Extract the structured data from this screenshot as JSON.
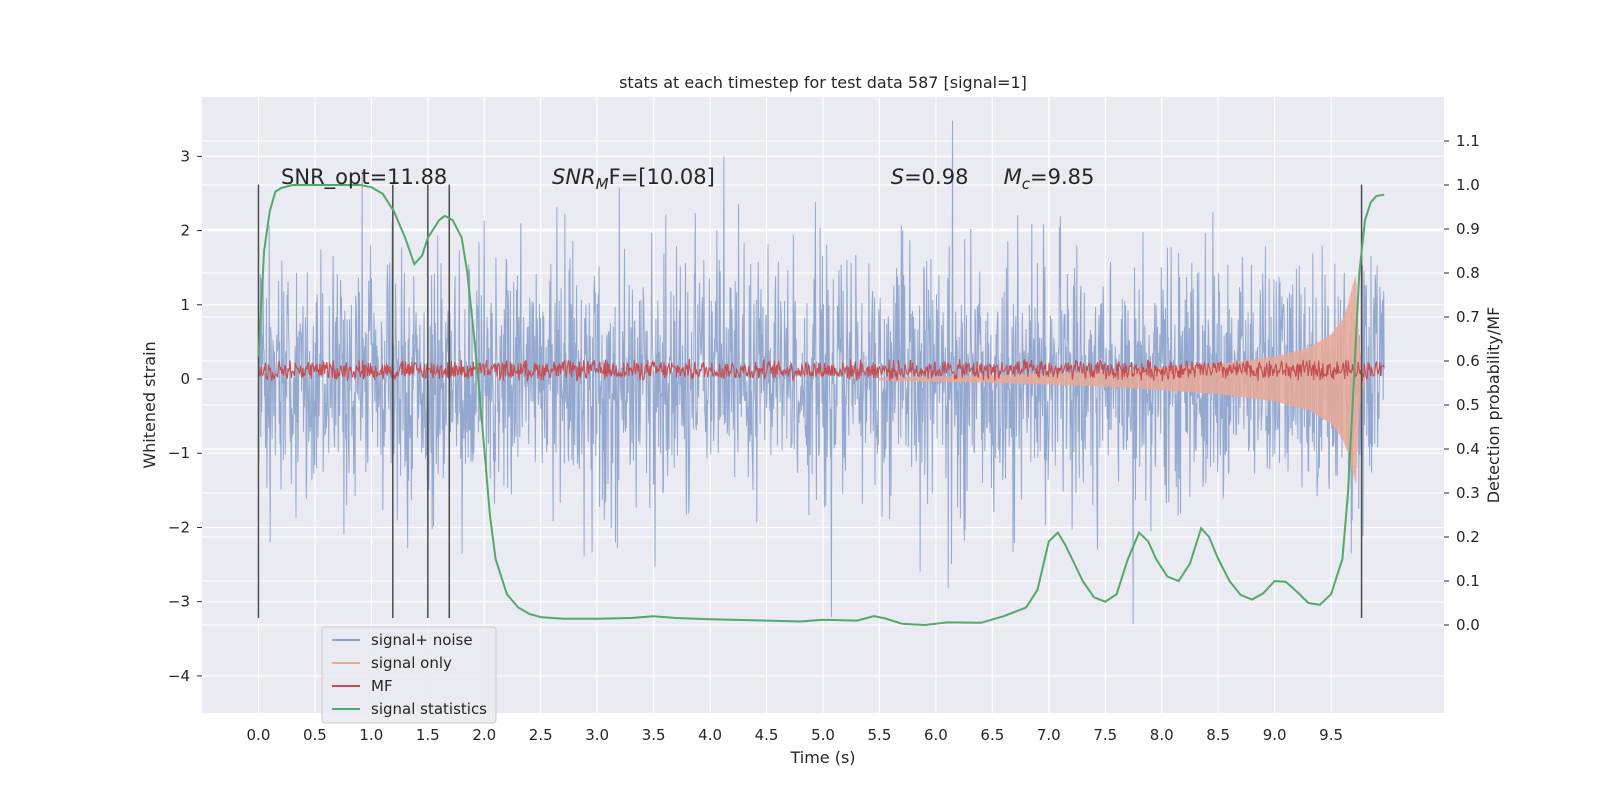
{
  "chart_data": {
    "type": "line",
    "title": "stats at each timestep for test data 587 [signal=1]",
    "xlabel": "Time (s)",
    "ylabel_left": "Whitened strain",
    "ylabel_right": "Detection probability/MF",
    "xlim": [
      -0.5,
      10.5
    ],
    "ylim_left": [
      -4.5,
      3.8
    ],
    "ylim_right": [
      -0.2,
      1.2
    ],
    "x_ticks": [
      0.0,
      0.5,
      1.0,
      1.5,
      2.0,
      2.5,
      3.0,
      3.5,
      4.0,
      4.5,
      5.0,
      5.5,
      6.0,
      6.5,
      7.0,
      7.5,
      8.0,
      8.5,
      9.0,
      9.5
    ],
    "x_tick_labels": [
      "0.0",
      "0.5",
      "1.0",
      "1.5",
      "2.0",
      "2.5",
      "3.0",
      "3.5",
      "4.0",
      "4.5",
      "5.0",
      "5.5",
      "6.0",
      "6.5",
      "7.0",
      "7.5",
      "8.0",
      "8.5",
      "9.0",
      "9.5"
    ],
    "y_ticks_left": [
      -4,
      -3,
      -2,
      -1,
      0,
      1,
      2,
      3
    ],
    "y_tick_labels_left": [
      "−4",
      "−3",
      "−2",
      "−1",
      "0",
      "1",
      "2",
      "3"
    ],
    "y_ticks_right": [
      0.0,
      0.1,
      0.2,
      0.3,
      0.4,
      0.5,
      0.6,
      0.7,
      0.8,
      0.9,
      1.0,
      1.1
    ],
    "y_tick_labels_right": [
      "0.0",
      "0.1",
      "0.2",
      "0.3",
      "0.4",
      "0.5",
      "0.6",
      "0.7",
      "0.8",
      "0.9",
      "1.0",
      "1.1"
    ],
    "grid": true,
    "legend_position": "lower-left",
    "legend": [
      {
        "label": "signal+ noise",
        "color": "#8fa4cc"
      },
      {
        "label": "signal only",
        "color": "#e8a996"
      },
      {
        "label": "MF",
        "color": "#c44e52"
      },
      {
        "label": "signal statistics",
        "color": "#55a868"
      }
    ],
    "annotations": [
      {
        "id": "snr-opt",
        "x": 0.2,
        "y_right": 1.0,
        "prefix": "SNR_opt=11.88",
        "italic": "",
        "sub": "",
        "suffix": ""
      },
      {
        "id": "snr-mf",
        "x": 2.6,
        "y_right": 1.0,
        "prefix": "",
        "italic": "SNR",
        "sub": "M",
        "suffix": "F=[10.08]"
      },
      {
        "id": "overlap",
        "x": 5.6,
        "y_right": 1.0,
        "prefix": "",
        "italic": "S",
        "sub": "",
        "suffix": "=0.98"
      },
      {
        "id": "chirp-mass",
        "x": 6.6,
        "y_right": 1.0,
        "prefix": "",
        "italic": "M",
        "sub": "c",
        "suffix": "=9.85"
      }
    ],
    "vertical_lines": {
      "x": [
        0.0,
        1.19,
        1.5,
        1.69,
        9.77
      ],
      "y_range_left": [
        -3.22,
        2.62
      ],
      "color": "#4c4c4c"
    },
    "series": [
      {
        "name": "signal+ noise",
        "color": "#8fa4cc",
        "axis": "left",
        "x_range": [
          0.0,
          9.97
        ],
        "noise_sigma": 0.8,
        "typical_range": [
          -3.3,
          3.2
        ]
      },
      {
        "name": "signal only",
        "color": "#e8a996",
        "axis": "left",
        "chirp_start_x": 5.5,
        "merger_x": 9.72,
        "peak_amplitude": 1.4,
        "envelope": [
          [
            5.5,
            0.02
          ],
          [
            6.5,
            0.05
          ],
          [
            7.5,
            0.1
          ],
          [
            8.5,
            0.2
          ],
          [
            9.0,
            0.3
          ],
          [
            9.3,
            0.42
          ],
          [
            9.5,
            0.6
          ],
          [
            9.6,
            0.8
          ],
          [
            9.65,
            1.0
          ],
          [
            9.7,
            1.3
          ],
          [
            9.72,
            1.4
          ],
          [
            9.75,
            0.4
          ],
          [
            9.8,
            0.0
          ]
        ]
      },
      {
        "name": "MF",
        "color": "#c44e52",
        "axis": "left",
        "x_range": [
          0.0,
          9.97
        ],
        "center": 0.12,
        "band_half_width": 0.13
      },
      {
        "name": "signal statistics",
        "color": "#55a868",
        "axis": "right",
        "points": [
          [
            0.0,
            0.61
          ],
          [
            0.05,
            0.85
          ],
          [
            0.1,
            0.94
          ],
          [
            0.15,
            0.985
          ],
          [
            0.2,
            0.993
          ],
          [
            0.3,
            1.0
          ],
          [
            0.5,
            1.0
          ],
          [
            0.7,
            1.0
          ],
          [
            0.9,
            1.0
          ],
          [
            1.0,
            0.995
          ],
          [
            1.1,
            0.98
          ],
          [
            1.2,
            0.94
          ],
          [
            1.3,
            0.88
          ],
          [
            1.38,
            0.82
          ],
          [
            1.45,
            0.84
          ],
          [
            1.5,
            0.88
          ],
          [
            1.6,
            0.92
          ],
          [
            1.65,
            0.93
          ],
          [
            1.72,
            0.92
          ],
          [
            1.8,
            0.88
          ],
          [
            1.85,
            0.8
          ],
          [
            1.9,
            0.68
          ],
          [
            1.95,
            0.55
          ],
          [
            2.0,
            0.4
          ],
          [
            2.05,
            0.25
          ],
          [
            2.1,
            0.15
          ],
          [
            2.2,
            0.07
          ],
          [
            2.3,
            0.04
          ],
          [
            2.4,
            0.025
          ],
          [
            2.5,
            0.018
          ],
          [
            2.7,
            0.014
          ],
          [
            3.0,
            0.014
          ],
          [
            3.3,
            0.016
          ],
          [
            3.5,
            0.02
          ],
          [
            3.7,
            0.016
          ],
          [
            4.0,
            0.013
          ],
          [
            4.5,
            0.01
          ],
          [
            4.8,
            0.008
          ],
          [
            5.0,
            0.012
          ],
          [
            5.3,
            0.01
          ],
          [
            5.45,
            0.02
          ],
          [
            5.55,
            0.015
          ],
          [
            5.7,
            0.003
          ],
          [
            5.9,
            0.0
          ],
          [
            6.1,
            0.006
          ],
          [
            6.4,
            0.005
          ],
          [
            6.6,
            0.02
          ],
          [
            6.8,
            0.04
          ],
          [
            6.9,
            0.08
          ],
          [
            7.0,
            0.19
          ],
          [
            7.08,
            0.21
          ],
          [
            7.15,
            0.18
          ],
          [
            7.3,
            0.1
          ],
          [
            7.4,
            0.063
          ],
          [
            7.5,
            0.053
          ],
          [
            7.6,
            0.07
          ],
          [
            7.7,
            0.15
          ],
          [
            7.8,
            0.21
          ],
          [
            7.88,
            0.19
          ],
          [
            7.95,
            0.15
          ],
          [
            8.05,
            0.11
          ],
          [
            8.15,
            0.1
          ],
          [
            8.25,
            0.14
          ],
          [
            8.35,
            0.22
          ],
          [
            8.42,
            0.2
          ],
          [
            8.5,
            0.15
          ],
          [
            8.6,
            0.1
          ],
          [
            8.7,
            0.068
          ],
          [
            8.8,
            0.058
          ],
          [
            8.9,
            0.072
          ],
          [
            9.0,
            0.1
          ],
          [
            9.1,
            0.098
          ],
          [
            9.2,
            0.075
          ],
          [
            9.3,
            0.05
          ],
          [
            9.4,
            0.046
          ],
          [
            9.5,
            0.07
          ],
          [
            9.6,
            0.15
          ],
          [
            9.65,
            0.3
          ],
          [
            9.7,
            0.55
          ],
          [
            9.75,
            0.8
          ],
          [
            9.8,
            0.92
          ],
          [
            9.85,
            0.96
          ],
          [
            9.9,
            0.975
          ],
          [
            9.97,
            0.978
          ]
        ]
      }
    ]
  }
}
